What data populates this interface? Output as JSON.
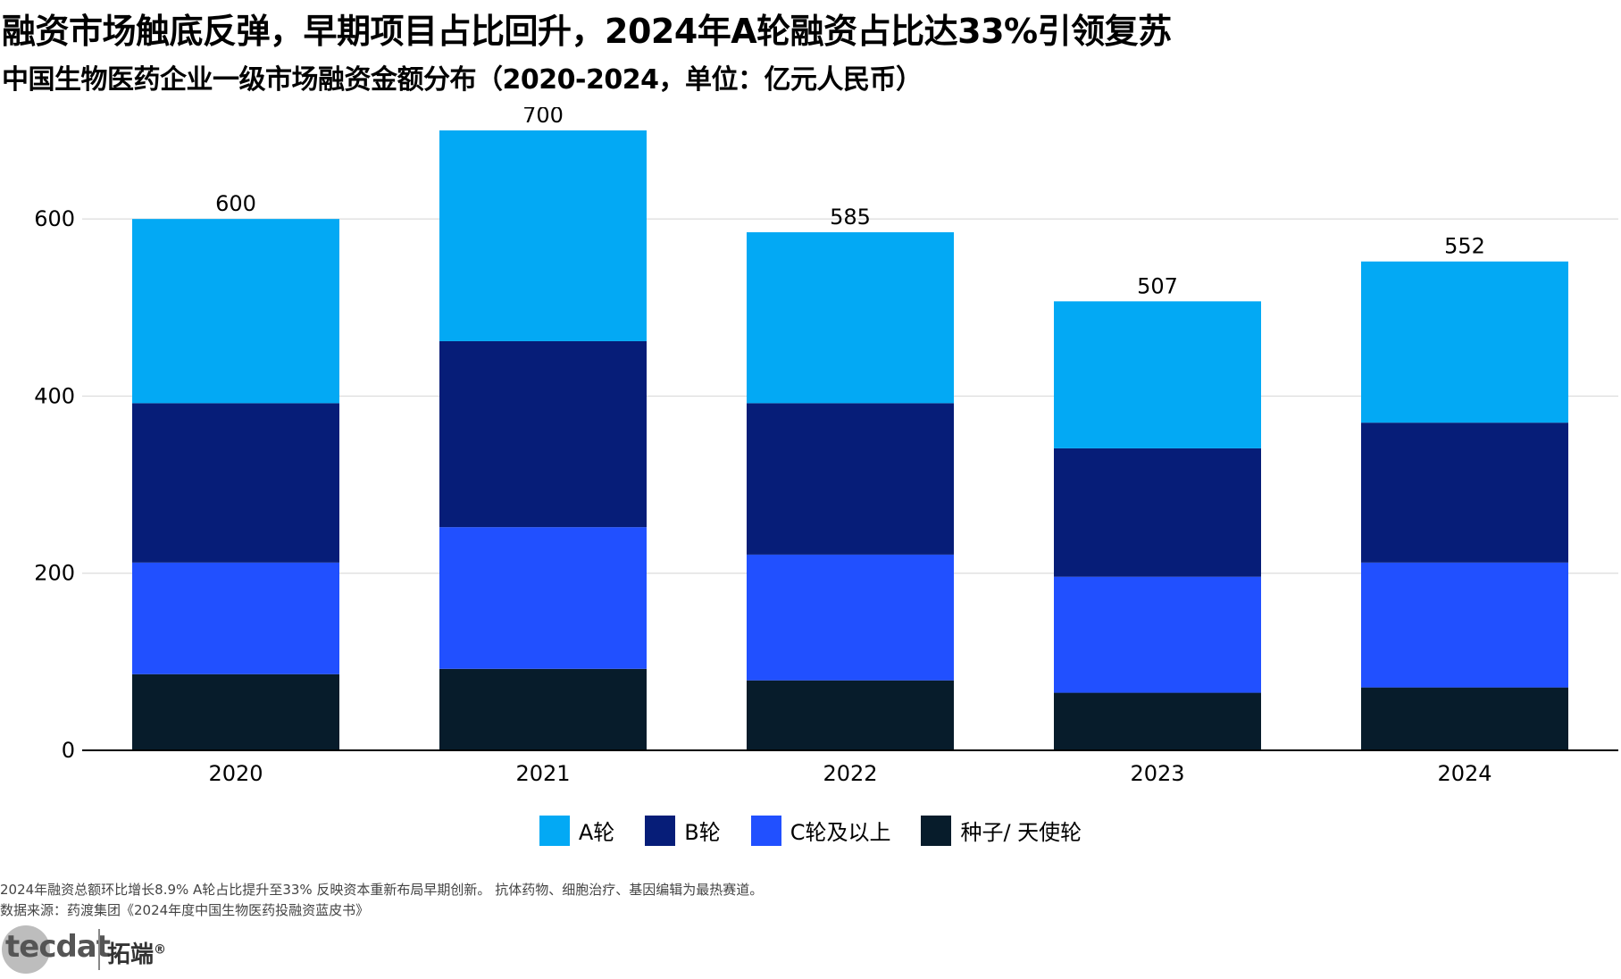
{
  "title": "融资市场触底反弹，早期项目占比回升，2024年A轮融资占比达33%引领复苏",
  "subtitle": "中国生物医药企业一级市场融资金额分布（2020-2024，单位：亿元人民币）",
  "notes": {
    "line1": "2024年融资总额环比增长8.9%  A轮占比提升至33%  反映资本重新布局早期创新。 抗体药物、细胞治疗、基因编辑为最热赛道。",
    "line2": "数据来源：药渡集团《2024年度中国生物医药投融资蓝皮书》"
  },
  "logo": {
    "text": "tecdat",
    "cn": "拓端",
    "reg": "®"
  },
  "chart_data": {
    "type": "bar",
    "stacked": true,
    "categories": [
      "2020",
      "2021",
      "2022",
      "2023",
      "2024"
    ],
    "series": [
      {
        "name": "种子/ 天使轮",
        "color": "#071c2b",
        "values": [
          86,
          92,
          79,
          65,
          71
        ]
      },
      {
        "name": "C轮及以上",
        "color": "#2150ff",
        "values": [
          126,
          160,
          142,
          131,
          141
        ]
      },
      {
        "name": "B轮",
        "color": "#061d78",
        "values": [
          180,
          210,
          171,
          145,
          158
        ]
      },
      {
        "name": "A轮",
        "color": "#03a9f4",
        "values": [
          208,
          238,
          193,
          166,
          182
        ]
      }
    ],
    "totals": [
      "600",
      "700",
      "585",
      "507",
      "552"
    ],
    "legend_order": [
      "A轮",
      "B轮",
      "C轮及以上",
      "种子/ 天使轮"
    ],
    "yticks": [
      "0",
      "200",
      "400",
      "600"
    ],
    "ylim": [
      0,
      700
    ],
    "grid": true,
    "legend_position": "bottom"
  }
}
